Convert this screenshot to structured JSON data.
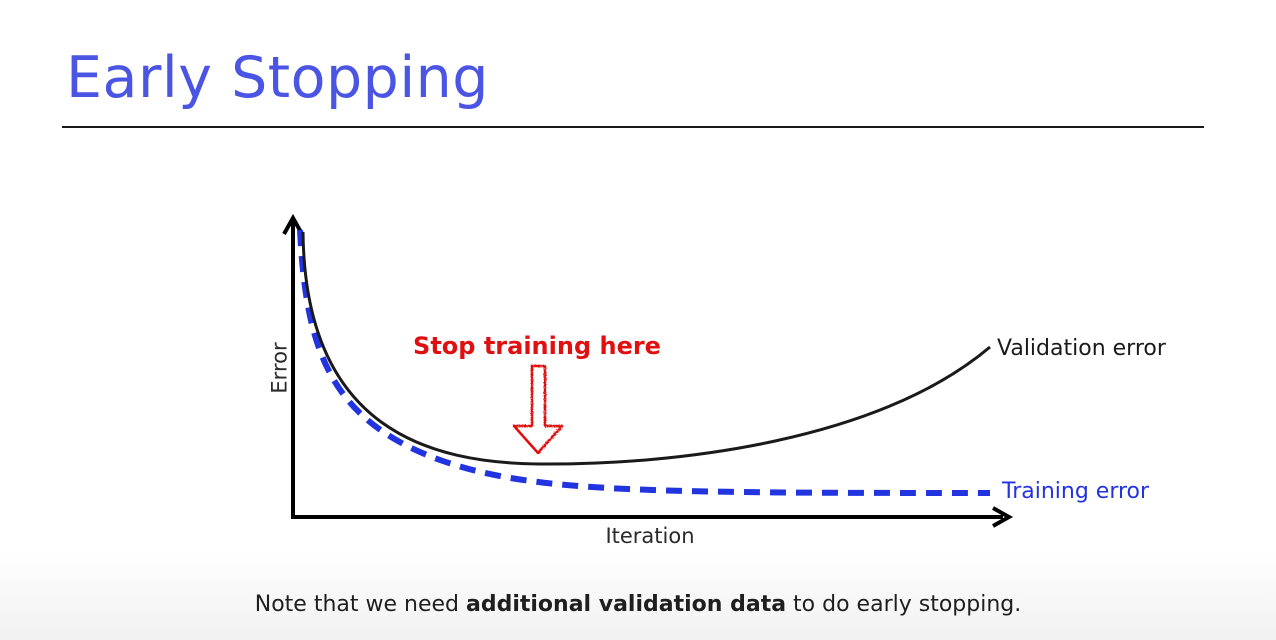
{
  "slide": {
    "title": "Early Stopping",
    "title_color": "#4a55e3"
  },
  "diagram": {
    "y_axis_label": "Error",
    "x_axis_label": "Iteration",
    "validation_label": "Validation error",
    "training_label": "Training error",
    "callout": "Stop training here",
    "callout_color": "#e01010",
    "validation_color": "#1a1a1a",
    "training_color": "#2233e0",
    "arrow_icon": "down-arrow-icon"
  },
  "footnote": {
    "prefix": "Note that we need ",
    "emphasis": "additional validation data",
    "suffix": " to do early stopping."
  }
}
